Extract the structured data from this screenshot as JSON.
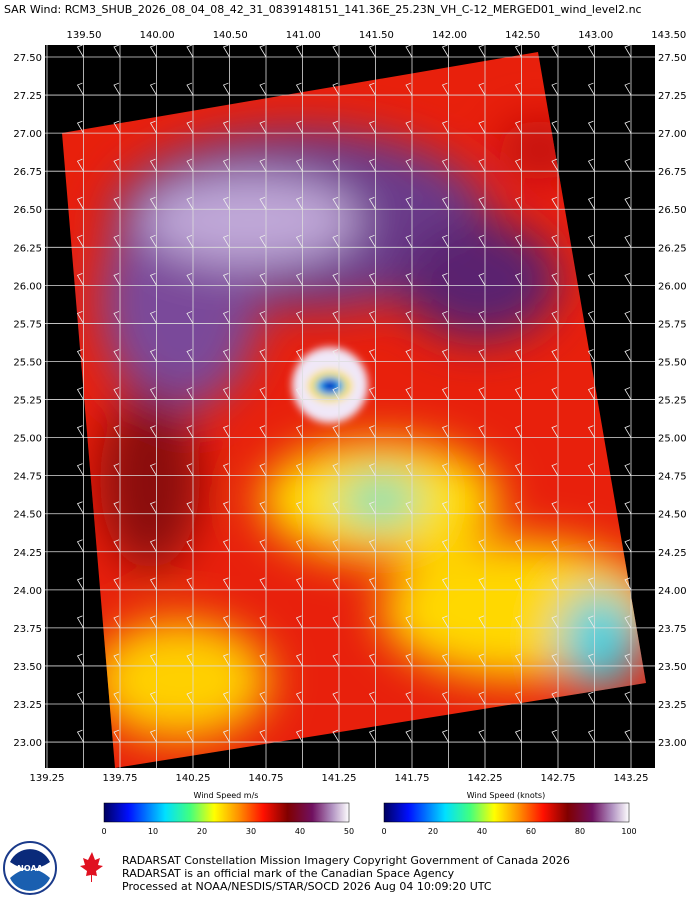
{
  "header": {
    "title": "SAR Wind: RCM3_SHUB_2026_08_04_08_42_31_0839148151_141.36E_25.23N_VH_C-12_MERGED01_wind_level2.nc"
  },
  "map": {
    "top_lon_labels": [
      "139.50",
      "140.00",
      "140.50",
      "141.00",
      "141.50",
      "142.00",
      "142.50",
      "143.00",
      "143.50"
    ],
    "bottom_lon_labels": [
      "139.25",
      "139.75",
      "140.25",
      "140.75",
      "141.25",
      "141.75",
      "142.25",
      "142.75",
      "143.25"
    ],
    "lat_labels": [
      "27.50",
      "27.25",
      "27.00",
      "26.75",
      "26.50",
      "26.25",
      "26.00",
      "25.75",
      "25.50",
      "25.25",
      "25.00",
      "24.75",
      "24.50",
      "24.25",
      "24.00",
      "23.75",
      "23.50",
      "23.25",
      "23.00"
    ]
  },
  "colorbars": [
    {
      "title": "Wind Speed m/s",
      "ticks": [
        "0",
        "10",
        "20",
        "30",
        "40",
        "50"
      ]
    },
    {
      "title": "Wind Speed (knots)",
      "ticks": [
        "0",
        "20",
        "40",
        "60",
        "80",
        "100"
      ]
    }
  ],
  "footer": {
    "logo_noaa": "NOAA",
    "lines": [
      "RADARSAT Constellation Mission Imagery Copyright Government of Canada 2026",
      "RADARSAT is an official mark of the Canadian Space Agency",
      "Processed at NOAA/NESDIS/STAR/SOCD 2026 Aug 04 10:09:20 UTC"
    ]
  }
}
